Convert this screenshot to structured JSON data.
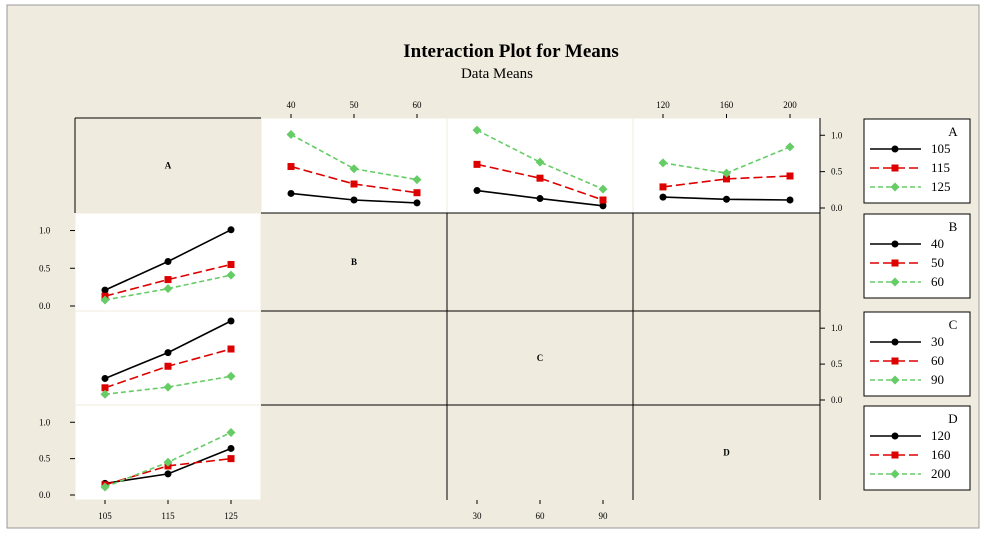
{
  "chart_data": {
    "type": "line",
    "title": "Interaction Plot for Means",
    "subtitle": "Data Means",
    "factors": [
      {
        "name": "A",
        "levels": [
          "105",
          "115",
          "125"
        ],
        "ticks": [
          "105",
          "115",
          "125"
        ]
      },
      {
        "name": "B",
        "levels": [
          "40",
          "50",
          "60"
        ],
        "ticks": [
          "40",
          "50",
          "60"
        ]
      },
      {
        "name": "C",
        "levels": [
          "30",
          "60",
          "90"
        ],
        "ticks": [
          "30",
          "60",
          "90"
        ]
      },
      {
        "name": "D",
        "levels": [
          "120",
          "160",
          "200"
        ],
        "ticks": [
          "120",
          "160",
          "200"
        ]
      }
    ],
    "y_ticks": [
      "1.0",
      "0.5",
      "0.0"
    ],
    "ylim": [
      0,
      1.1
    ],
    "colors": [
      "#000000",
      "#dd0000",
      "#66cc66"
    ],
    "markers": [
      "circle",
      "square",
      "diamond"
    ],
    "panels": [
      {
        "row": "A",
        "col": "B",
        "series": [
          {
            "name": "105",
            "values": [
              0.2,
              0.11,
              0.07
            ]
          },
          {
            "name": "115",
            "values": [
              0.57,
              0.33,
              0.21
            ]
          },
          {
            "name": "125",
            "values": [
              1.01,
              0.54,
              0.39
            ]
          }
        ]
      },
      {
        "row": "A",
        "col": "C",
        "series": [
          {
            "name": "105",
            "values": [
              0.24,
              0.13,
              0.03
            ]
          },
          {
            "name": "115",
            "values": [
              0.6,
              0.41,
              0.11
            ]
          },
          {
            "name": "125",
            "values": [
              1.07,
              0.63,
              0.26
            ]
          }
        ]
      },
      {
        "row": "A",
        "col": "D",
        "series": [
          {
            "name": "105",
            "values": [
              0.15,
              0.12,
              0.11
            ]
          },
          {
            "name": "115",
            "values": [
              0.29,
              0.4,
              0.44
            ]
          },
          {
            "name": "125",
            "values": [
              0.62,
              0.48,
              0.84
            ]
          }
        ]
      },
      {
        "row": "B",
        "col": "A",
        "series": [
          {
            "name": "40",
            "values": [
              0.21,
              0.59,
              1.01
            ]
          },
          {
            "name": "50",
            "values": [
              0.13,
              0.35,
              0.55
            ]
          },
          {
            "name": "60",
            "values": [
              0.08,
              0.23,
              0.41
            ]
          }
        ]
      },
      {
        "row": "C",
        "col": "A",
        "series": [
          {
            "name": "30",
            "values": [
              0.3,
              0.66,
              1.1
            ]
          },
          {
            "name": "60",
            "values": [
              0.17,
              0.47,
              0.71
            ]
          },
          {
            "name": "90",
            "values": [
              0.08,
              0.18,
              0.33
            ]
          }
        ]
      },
      {
        "row": "D",
        "col": "A",
        "series": [
          {
            "name": "120",
            "values": [
              0.16,
              0.29,
              0.64
            ]
          },
          {
            "name": "160",
            "values": [
              0.14,
              0.4,
              0.5
            ]
          },
          {
            "name": "200",
            "values": [
              0.11,
              0.45,
              0.86
            ]
          }
        ]
      }
    ]
  }
}
